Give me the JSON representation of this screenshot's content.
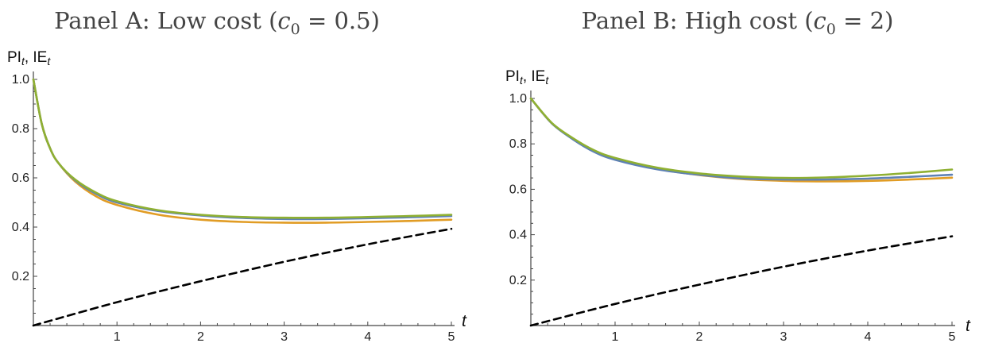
{
  "chart_data": [
    {
      "type": "line",
      "title": {
        "prefix": "Panel A: Low cost (",
        "var": "c",
        "sub": "0",
        "rest": " = 0.5)"
      },
      "ylabel": {
        "pi": "PI",
        "sep": ", ",
        "ie": "IE",
        "sub": "t"
      },
      "xlabel": "t",
      "xlim": [
        0,
        5
      ],
      "ylim": [
        0,
        1.05
      ],
      "x_ticks": [
        1,
        2,
        3,
        4,
        5
      ],
      "y_ticks": [
        0.2,
        0.4,
        0.6,
        0.8,
        1.0
      ],
      "x_tick_labels": [
        "1",
        "2",
        "3",
        "4",
        "5"
      ],
      "y_tick_labels": [
        "0.2",
        "0.4",
        "0.6",
        "0.8",
        "1.0"
      ],
      "series": [
        {
          "color": "#5E81B5",
          "dashed": false,
          "x": [
            0,
            0.1,
            0.2,
            0.3,
            0.5,
            0.75,
            1,
            1.5,
            2,
            2.5,
            3,
            3.5,
            4,
            4.5,
            5
          ],
          "y": [
            1.0,
            0.82,
            0.72,
            0.66,
            0.59,
            0.535,
            0.5,
            0.465,
            0.447,
            0.437,
            0.433,
            0.433,
            0.436,
            0.44,
            0.445
          ]
        },
        {
          "color": "#E19C24",
          "dashed": false,
          "x": [
            0,
            0.1,
            0.2,
            0.3,
            0.5,
            0.75,
            1,
            1.5,
            2,
            2.5,
            3,
            3.5,
            4,
            4.5,
            5
          ],
          "y": [
            1.0,
            0.82,
            0.72,
            0.66,
            0.585,
            0.525,
            0.49,
            0.45,
            0.43,
            0.421,
            0.418,
            0.418,
            0.421,
            0.425,
            0.43
          ]
        },
        {
          "color": "#8FB032",
          "dashed": false,
          "x": [
            0,
            0.1,
            0.2,
            0.3,
            0.5,
            0.75,
            1,
            1.5,
            2,
            2.5,
            3,
            3.5,
            4,
            4.5,
            5
          ],
          "y": [
            1.0,
            0.82,
            0.72,
            0.66,
            0.593,
            0.54,
            0.505,
            0.468,
            0.45,
            0.441,
            0.438,
            0.438,
            0.441,
            0.445,
            0.45
          ]
        },
        {
          "color": "#000000",
          "dashed": true,
          "x": [
            0,
            1,
            2,
            3,
            4,
            5
          ],
          "y": [
            0,
            0.095,
            0.18,
            0.259,
            0.33,
            0.393
          ]
        }
      ]
    },
    {
      "type": "line",
      "title": {
        "prefix": "Panel B: High cost (",
        "var": "c",
        "sub": "0",
        "rest": " = 2)"
      },
      "ylabel": {
        "pi": "PI",
        "sep": ", ",
        "ie": "IE",
        "sub": "t"
      },
      "xlabel": "t",
      "xlim": [
        0,
        5
      ],
      "ylim": [
        0,
        1.05
      ],
      "x_ticks": [
        1,
        2,
        3,
        4,
        5
      ],
      "y_ticks": [
        0.2,
        0.4,
        0.6,
        0.8,
        1.0
      ],
      "x_tick_labels": [
        "1",
        "2",
        "3",
        "4",
        "5"
      ],
      "y_tick_labels": [
        "0.2",
        "0.4",
        "0.6",
        "0.8",
        "1.0"
      ],
      "series": [
        {
          "color": "#5E81B5",
          "dashed": false,
          "x": [
            0,
            0.25,
            0.5,
            0.75,
            1,
            1.5,
            2,
            2.5,
            3,
            3.5,
            4,
            4.5,
            5
          ],
          "y": [
            1.0,
            0.89,
            0.82,
            0.765,
            0.73,
            0.688,
            0.664,
            0.648,
            0.643,
            0.643,
            0.647,
            0.655,
            0.664
          ]
        },
        {
          "color": "#E19C24",
          "dashed": false,
          "x": [
            0,
            0.25,
            0.5,
            0.75,
            1,
            1.5,
            2,
            2.5,
            3,
            3.5,
            4,
            4.5,
            5
          ],
          "y": [
            1.0,
            0.89,
            0.822,
            0.768,
            0.733,
            0.69,
            0.663,
            0.645,
            0.637,
            0.635,
            0.637,
            0.643,
            0.651
          ]
        },
        {
          "color": "#8FB032",
          "dashed": false,
          "x": [
            0,
            0.25,
            0.5,
            0.75,
            1,
            1.5,
            2,
            2.5,
            3,
            3.5,
            4,
            4.5,
            5
          ],
          "y": [
            1.0,
            0.892,
            0.825,
            0.772,
            0.738,
            0.695,
            0.67,
            0.656,
            0.65,
            0.652,
            0.66,
            0.672,
            0.687
          ]
        },
        {
          "color": "#000000",
          "dashed": true,
          "x": [
            0,
            1,
            2,
            3,
            4,
            5
          ],
          "y": [
            0,
            0.095,
            0.18,
            0.259,
            0.33,
            0.393
          ]
        }
      ]
    }
  ]
}
